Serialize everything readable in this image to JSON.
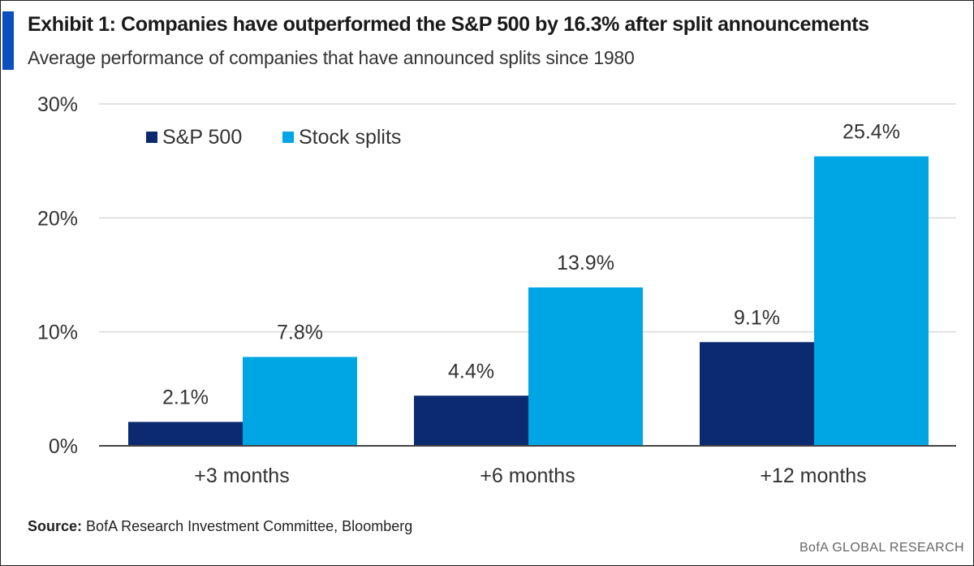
{
  "header": {
    "title": "Exhibit 1: Companies have outperformed the S&P 500  by 16.3% after split announcements",
    "subtitle": "Average performance of companies that have announced splits since 1980"
  },
  "footer": {
    "source_label": "Source:",
    "source_text": "BofA Research Investment Committee, Bloomberg",
    "brand": "BofA GLOBAL RESEARCH"
  },
  "colors": {
    "accent": "#0b4fc0",
    "sp500": "#0b2a6f",
    "splits": "#00a6e3"
  },
  "chart_data": {
    "type": "bar",
    "categories": [
      "+3 months",
      "+6 months",
      "+12 months"
    ],
    "series": [
      {
        "name": "S&P 500",
        "values": [
          2.1,
          4.4,
          9.1
        ],
        "labels": [
          "2.1%",
          "4.4%",
          "9.1%"
        ],
        "color": "#0b2a6f"
      },
      {
        "name": "Stock splits",
        "values": [
          7.8,
          13.9,
          25.4
        ],
        "labels": [
          "7.8%",
          "13.9%",
          "25.4%"
        ],
        "color": "#00a6e3"
      }
    ],
    "ylim": [
      0,
      30
    ],
    "yticks": [
      0,
      10,
      20,
      30
    ],
    "ytick_labels": [
      "0%",
      "10%",
      "20%",
      "30%"
    ],
    "grid": true,
    "legend": "top-left"
  }
}
